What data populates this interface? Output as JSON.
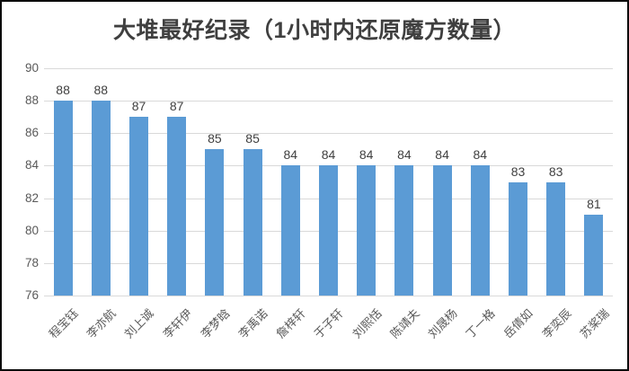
{
  "chart_data": {
    "type": "bar",
    "title": "大堆最好纪录（1小时内还原魔方数量）",
    "categories": [
      "程宝钰",
      "李亦航",
      "刘上诚",
      "李轩伊",
      "李梦晗",
      "李禹诺",
      "詹梓轩",
      "于子轩",
      "刘熙恬",
      "陈靖夫",
      "刘晟杨",
      "丁一格",
      "岳倩如",
      "李奕辰",
      "苏桨瑞"
    ],
    "values": [
      88,
      88,
      87,
      87,
      85,
      85,
      84,
      84,
      84,
      84,
      84,
      84,
      83,
      83,
      81
    ],
    "yticks": [
      90,
      88,
      86,
      84,
      82,
      80,
      78,
      76
    ],
    "ylim": [
      76,
      90
    ],
    "xlabel": "",
    "ylabel": "",
    "grid": true,
    "legend_position": "none",
    "data_labels": true,
    "bar_color": "#5B9BD5",
    "colors": {
      "title_text": "#3f3f3f",
      "axis_tick_text": "#595959",
      "category_text": "#595959",
      "data_label_text": "#404040",
      "gridline": "#d9d9d9",
      "background": "#ffffff",
      "frame_border": "#0b0b0b"
    }
  }
}
